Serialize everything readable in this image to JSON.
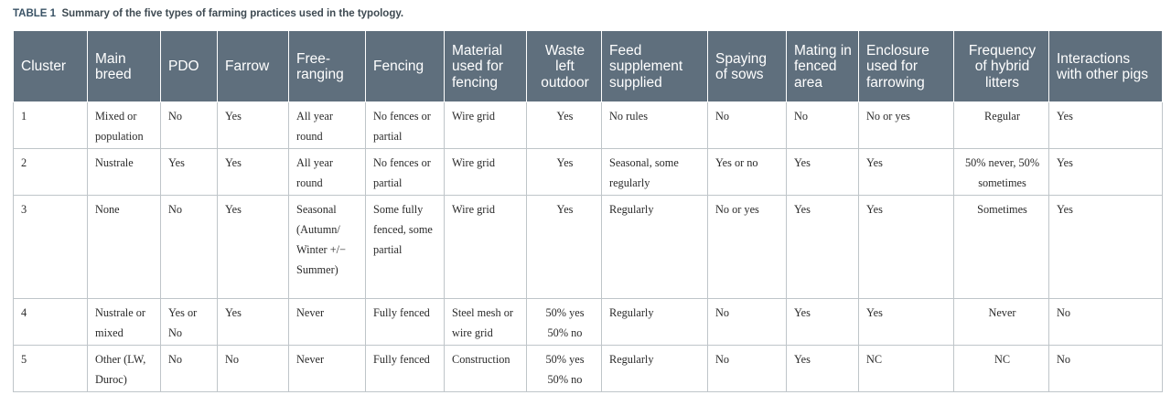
{
  "caption": {
    "label": "TABLE 1",
    "text": "Summary of the five types of farming practices used in the typology."
  },
  "headers": [
    "Cluster",
    "Main breed",
    "PDO",
    "Farrow",
    "Free-ranging",
    "Fencing",
    "Material used for fencing",
    "Waste left outdoor",
    "Feed supplement supplied",
    "Spaying of sows",
    "Mating in fenced area",
    "Enclosure used for farrowing",
    "Frequency of hybrid litters",
    "Interactions with other pigs"
  ],
  "rows": [
    [
      "1",
      "Mixed or population",
      "No",
      "Yes",
      "All year round",
      "No fences or partial",
      "Wire grid",
      "Yes",
      "No rules",
      "No",
      "No",
      "No or yes",
      "Regular",
      "Yes"
    ],
    [
      "2",
      "Nustrale",
      "Yes",
      "Yes",
      "All year round",
      "No fences or partial",
      "Wire grid",
      "Yes",
      "Seasonal, some regularly",
      "Yes or no",
      "Yes",
      "Yes",
      "50% never, 50% sometimes",
      "Yes"
    ],
    [
      "3",
      "None",
      "No",
      "Yes",
      "Seasonal (Autumn/ Winter +/− Summer)",
      "Some fully fenced, some partial",
      "Wire grid",
      "Yes",
      "Regularly",
      "No or yes",
      "Yes",
      "Yes",
      "Sometimes",
      "Yes"
    ],
    [
      "4",
      "Nustrale or mixed",
      "Yes or No",
      "Yes",
      "Never",
      "Fully fenced",
      "Steel mesh or wire grid",
      "50% yes 50% no",
      "Regularly",
      "No",
      "Yes",
      "Yes",
      "Never",
      "No"
    ],
    [
      "5",
      "Other (LW, Duroc)",
      "No",
      "No",
      "Never",
      "Fully fenced",
      "Construction",
      "50% yes 50% no",
      "Regularly",
      "No",
      "Yes",
      "NC",
      "NC",
      "No"
    ]
  ]
}
